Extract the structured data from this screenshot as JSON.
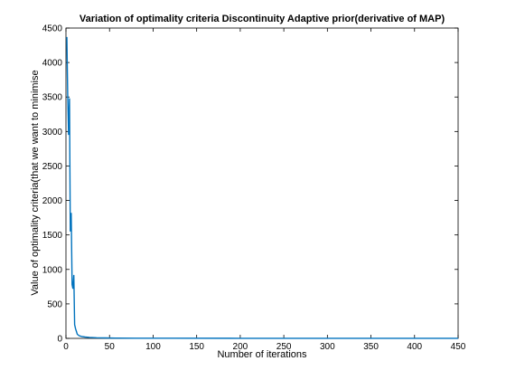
{
  "chart_data": {
    "type": "line",
    "title": "Variation of optimality criteria Discontinuity Adaptive prior(derivative of MAP)",
    "xlabel": "Number of iterations",
    "ylabel": "Value of optimality criteria(that we want to minimise",
    "xlim": [
      0,
      450
    ],
    "ylim": [
      0,
      4500
    ],
    "xticks": [
      0,
      50,
      100,
      150,
      200,
      250,
      300,
      350,
      400,
      450
    ],
    "yticks": [
      0,
      500,
      1000,
      1500,
      2000,
      2500,
      3000,
      3500,
      4000,
      4500
    ],
    "grid": false,
    "line_color": "#0072bd",
    "series": [
      {
        "x": [
          1,
          2,
          3,
          4,
          5,
          6,
          7,
          8,
          9,
          10,
          11,
          12,
          13,
          15,
          18,
          22,
          27,
          35,
          45,
          60,
          80,
          120,
          200,
          300,
          400,
          450
        ],
        "y": [
          4370,
          3550,
          2950,
          3480,
          1550,
          1820,
          780,
          720,
          920,
          200,
          140,
          100,
          60,
          40,
          28,
          20,
          14,
          9,
          6,
          4,
          3,
          2,
          1,
          1,
          1,
          1
        ]
      }
    ]
  }
}
